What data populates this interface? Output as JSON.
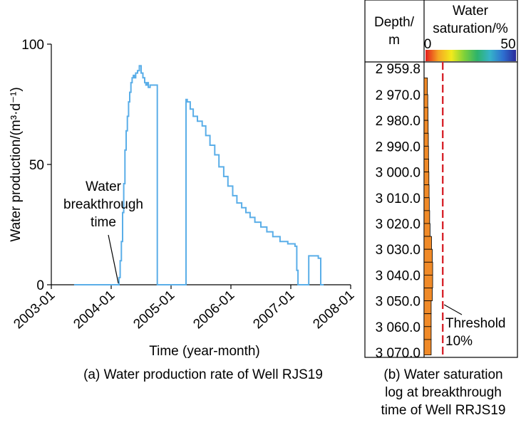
{
  "chart_data": [
    {
      "type": "line",
      "step": true,
      "xlabel": "Time (year-month)",
      "ylabel": "Water production/(m³·d⁻¹)",
      "xticks": [
        "2003-01",
        "2004-01",
        "2005-01",
        "2006-01",
        "2007-01",
        "2008-01"
      ],
      "yticks": [
        "0",
        "50",
        "100"
      ],
      "xlim": [
        2003.0,
        2008.0
      ],
      "ylim": [
        0,
        100
      ],
      "caption": "(a) Water production rate of Well RJS19",
      "annotation": {
        "lines": [
          "Water",
          "breakthrough",
          "time"
        ],
        "x": 2004.12,
        "y": 0
      },
      "series": [
        {
          "color": "#5aaee8",
          "x": [
            2003.38,
            2004.1,
            2004.13,
            2004.15,
            2004.17,
            2004.19,
            2004.21,
            2004.23,
            2004.25,
            2004.27,
            2004.29,
            2004.31,
            2004.33,
            2004.35,
            2004.37,
            2004.39,
            2004.41,
            2004.44,
            2004.47,
            2004.5,
            2004.53,
            2004.56,
            2004.58,
            2004.6,
            2004.62,
            2004.65,
            2004.7,
            2004.73,
            2004.77,
            2004.81,
            2004.88,
            2004.92,
            2004.94,
            2005.25,
            2005.27,
            2005.32,
            2005.37,
            2005.44,
            2005.52,
            2005.58,
            2005.65,
            2005.73,
            2005.8,
            2005.88,
            2005.95,
            2006.03,
            2006.1,
            2006.18,
            2006.25,
            2006.32,
            2006.4,
            2006.5,
            2006.6,
            2006.7,
            2006.82,
            2006.95,
            2007.07,
            2007.1,
            2007.12,
            2007.22,
            2007.25,
            2007.3,
            2007.36,
            2007.46,
            2007.5,
            2007.55
          ],
          "y": [
            0,
            0,
            3,
            10,
            18,
            30,
            42,
            56,
            64,
            70,
            76,
            80,
            84,
            86,
            87,
            86,
            88,
            89,
            91,
            88,
            86,
            84,
            83,
            84,
            82,
            83,
            83,
            83,
            0,
            0,
            0,
            0,
            0,
            77,
            76,
            73,
            70,
            68,
            66,
            62,
            58,
            54,
            49,
            45,
            41,
            37,
            34,
            32,
            30,
            28,
            26,
            24,
            22,
            20,
            18,
            17,
            16,
            6,
            0,
            0,
            0,
            12,
            12,
            11,
            0,
            0
          ]
        }
      ]
    },
    {
      "type": "bar",
      "orientation": "horizontal",
      "col1": "Depth/ m",
      "col2_line1": "Water",
      "col2_line2": "saturation/%",
      "scale_min": "0",
      "scale_max": "50",
      "xlim": [
        0,
        50
      ],
      "colormap": [
        "#e21c1c",
        "#f5a623",
        "#f2ea1c",
        "#7ed13a",
        "#2db36b",
        "#36b3c9",
        "#2e6fd0",
        "#2a2a9a"
      ],
      "bar_color": "#f08a28",
      "depth_labels": [
        "2 959.8",
        "2 970.0",
        "2 980.0",
        "2 990.0",
        "3 000.0",
        "3 010.0",
        "3 020.0",
        "3 030.0",
        "3 040.0",
        "3 050.0",
        "3 060.0",
        "3 070.0"
      ],
      "depth_values": [
        2959.8,
        2970.0,
        2980.0,
        2990.0,
        3000.0,
        3010.0,
        3020.0,
        3030.0,
        3040.0,
        3050.0,
        3060.0,
        3070.0
      ],
      "bars": [
        {
          "top": 2963.5,
          "bottom": 2970.0,
          "value": 1.8
        },
        {
          "top": 2970.0,
          "bottom": 2975.0,
          "value": 2.0
        },
        {
          "top": 2975.0,
          "bottom": 2980.0,
          "value": 2.1
        },
        {
          "top": 2980.0,
          "bottom": 2985.0,
          "value": 2.2
        },
        {
          "top": 2985.0,
          "bottom": 2990.0,
          "value": 2.3
        },
        {
          "top": 2990.0,
          "bottom": 2995.0,
          "value": 2.4
        },
        {
          "top": 2995.0,
          "bottom": 3000.0,
          "value": 2.5
        },
        {
          "top": 3000.0,
          "bottom": 3005.0,
          "value": 2.6
        },
        {
          "top": 3005.0,
          "bottom": 3010.0,
          "value": 2.7
        },
        {
          "top": 3010.0,
          "bottom": 3015.0,
          "value": 2.8
        },
        {
          "top": 3015.0,
          "bottom": 3020.0,
          "value": 3.0
        },
        {
          "top": 3020.0,
          "bottom": 3025.0,
          "value": 3.2
        },
        {
          "top": 3025.0,
          "bottom": 3030.0,
          "value": 4.0
        },
        {
          "top": 3030.0,
          "bottom": 3035.0,
          "value": 4.4
        },
        {
          "top": 3035.0,
          "bottom": 3040.0,
          "value": 4.6
        },
        {
          "top": 3040.0,
          "bottom": 3045.0,
          "value": 4.6
        },
        {
          "top": 3045.0,
          "bottom": 3050.0,
          "value": 4.4
        },
        {
          "top": 3050.0,
          "bottom": 3055.0,
          "value": 3.8
        },
        {
          "top": 3055.0,
          "bottom": 3060.0,
          "value": 3.8
        },
        {
          "top": 3060.0,
          "bottom": 3065.0,
          "value": 3.8
        },
        {
          "top": 3065.0,
          "bottom": 3071.0,
          "value": 3.8
        }
      ],
      "threshold": {
        "value": 10,
        "label_line1": "Threshold",
        "label_line2": "10%",
        "color": "#d8262e"
      },
      "caption_lines": [
        "(b) Water saturation",
        "log at breakthrough",
        "time of Well RRJS19"
      ]
    }
  ]
}
